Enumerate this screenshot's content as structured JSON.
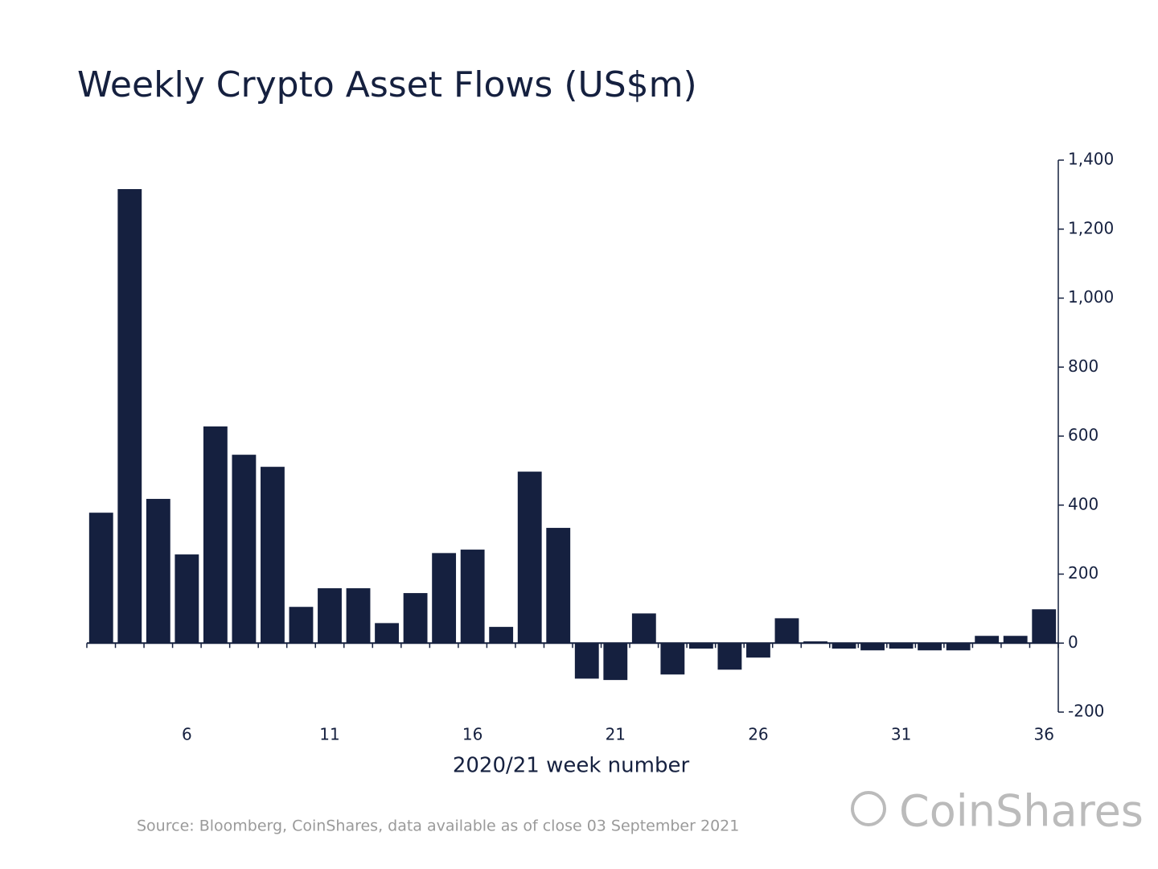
{
  "chart_data": {
    "type": "bar",
    "title": "Weekly Crypto Asset Flows (US$m)",
    "x_label": "2020/21 week number",
    "source": "Source: Bloomberg, CoinShares, data available as of close 03 September 2021",
    "brand": "CoinShares",
    "categories": [
      null,
      null,
      null,
      6,
      null,
      null,
      null,
      null,
      11,
      null,
      null,
      null,
      null,
      16,
      null,
      null,
      null,
      null,
      21,
      null,
      null,
      null,
      null,
      26,
      null,
      null,
      null,
      null,
      31,
      null,
      null,
      null,
      null,
      36
    ],
    "values": [
      378,
      1316,
      418,
      257,
      628,
      546,
      511,
      105,
      159,
      159,
      58,
      145,
      261,
      271,
      47,
      497,
      334,
      -103,
      -107,
      86,
      -91,
      -16,
      -77,
      -42,
      72,
      5,
      -16,
      -21,
      -16,
      -21,
      -21,
      21,
      21,
      98
    ],
    "color": "#15203f",
    "ylim": [
      -200,
      1400
    ],
    "yticks": [
      -200,
      0,
      200,
      400,
      600,
      800,
      {
        "value": 1000,
        "label": "1,000"
      },
      {
        "value": 1200,
        "label": "1,200"
      },
      {
        "value": 1400,
        "label": "1,400"
      }
    ],
    "y_axis_side": "right"
  }
}
